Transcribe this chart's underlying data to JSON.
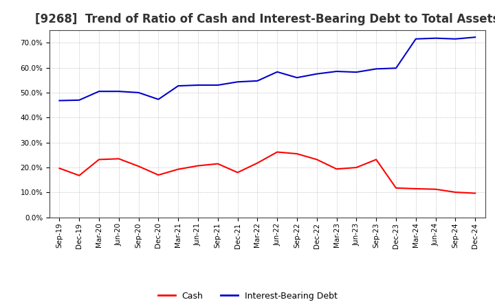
{
  "title": "[9268]  Trend of Ratio of Cash and Interest-Bearing Debt to Total Assets",
  "x_labels": [
    "Sep-19",
    "Dec-19",
    "Mar-20",
    "Jun-20",
    "Sep-20",
    "Dec-20",
    "Mar-21",
    "Jun-21",
    "Sep-21",
    "Dec-21",
    "Mar-22",
    "Jun-22",
    "Sep-22",
    "Dec-22",
    "Mar-23",
    "Jun-23",
    "Sep-23",
    "Dec-23",
    "Mar-24",
    "Jun-24",
    "Sep-24",
    "Dec-24"
  ],
  "cash": [
    0.197,
    0.168,
    0.232,
    0.235,
    0.205,
    0.17,
    0.193,
    0.207,
    0.215,
    0.18,
    0.218,
    0.262,
    0.255,
    0.232,
    0.194,
    0.2,
    0.232,
    0.118,
    0.115,
    0.113,
    0.101,
    0.097
  ],
  "debt": [
    0.468,
    0.47,
    0.505,
    0.505,
    0.5,
    0.473,
    0.527,
    0.53,
    0.53,
    0.543,
    0.547,
    0.583,
    0.56,
    0.575,
    0.585,
    0.582,
    0.595,
    0.598,
    0.715,
    0.718,
    0.715,
    0.722
  ],
  "cash_color": "#ff0000",
  "debt_color": "#0000cc",
  "background_color": "#ffffff",
  "grid_color": "#999999",
  "plot_bg_color": "#ffffff",
  "ylim": [
    0.0,
    0.75
  ],
  "yticks": [
    0.0,
    0.1,
    0.2,
    0.3,
    0.4,
    0.5,
    0.6,
    0.7
  ],
  "title_fontsize": 12,
  "tick_fontsize": 7.5,
  "legend_labels": [
    "Cash",
    "Interest-Bearing Debt"
  ],
  "line_width": 1.5
}
